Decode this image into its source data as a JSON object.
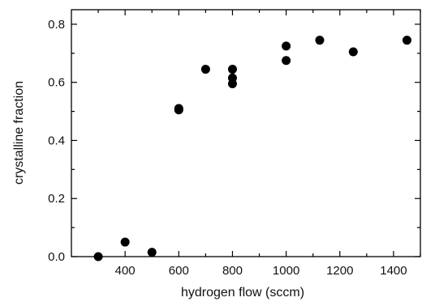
{
  "chart_data": {
    "type": "scatter",
    "title": "",
    "xlabel": "hydrogen flow (sccm)",
    "ylabel": "crystalline fraction",
    "xlim": [
      200,
      1500
    ],
    "ylim": [
      0,
      0.85
    ],
    "xticks": [
      400,
      600,
      800,
      1000,
      1200,
      1400
    ],
    "yticks": [
      0.0,
      0.2,
      0.4,
      0.6,
      0.8
    ],
    "xtick_labels": [
      "400",
      "600",
      "800",
      "1000",
      "1200",
      "1400"
    ],
    "ytick_labels": [
      "0.0",
      "0.2",
      "0.4",
      "0.6",
      "0.8"
    ],
    "grid": false,
    "legend": "none",
    "marker_color": "#000000",
    "series": [
      {
        "x": [
          300,
          400,
          500,
          600,
          600,
          700,
          800,
          800,
          800,
          1000,
          1000,
          1125,
          1250,
          1450
        ],
        "y": [
          0.0,
          0.05,
          0.015,
          0.51,
          0.505,
          0.645,
          0.645,
          0.615,
          0.595,
          0.725,
          0.675,
          0.745,
          0.705,
          0.745
        ]
      }
    ]
  }
}
